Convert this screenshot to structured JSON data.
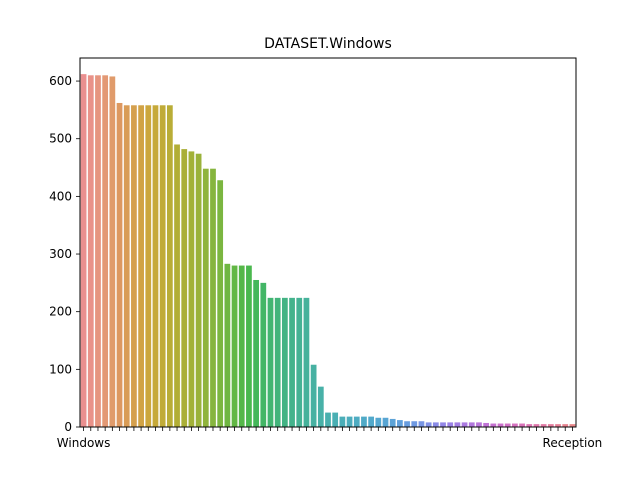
{
  "chart_data": {
    "type": "bar",
    "title": "DATASET.Windows",
    "xlabel": "",
    "ylabel": "",
    "ylim": [
      0,
      640
    ],
    "yticks": [
      0,
      100,
      200,
      300,
      400,
      500,
      600
    ],
    "grid": false,
    "legend": "none",
    "first_category_label": "Windows",
    "last_category_label": "Reception",
    "values": [
      612,
      610,
      610,
      610,
      608,
      562,
      558,
      558,
      558,
      558,
      558,
      558,
      558,
      490,
      482,
      478,
      474,
      448,
      448,
      428,
      283,
      280,
      280,
      280,
      255,
      250,
      224,
      224,
      224,
      224,
      224,
      224,
      108,
      70,
      25,
      25,
      18,
      18,
      18,
      18,
      18,
      16,
      16,
      14,
      12,
      10,
      10,
      10,
      8,
      8,
      8,
      8,
      8,
      8,
      8,
      8,
      7,
      6,
      6,
      6,
      6,
      6,
      5,
      5,
      5,
      5,
      5,
      5,
      5
    ],
    "colors": [
      "#ea8f8f",
      "#e99289",
      "#e6957f",
      "#e39975",
      "#e09b6b",
      "#dd9860",
      "#d99c56",
      "#d5a04e",
      "#d1a345",
      "#cca73d",
      "#c6a93a",
      "#c0ab38",
      "#b9ad37",
      "#b2ae36",
      "#aaaf37",
      "#a2b138",
      "#9ab23a",
      "#90b43c",
      "#86b53e",
      "#7bb640",
      "#6fb642",
      "#62b745",
      "#55b749",
      "#4ab84e",
      "#45b75a",
      "#43b666",
      "#42b571",
      "#42b47b",
      "#43b384",
      "#44b38c",
      "#45b294",
      "#46b29b",
      "#47b1a2",
      "#48b1a8",
      "#49b0ae",
      "#4aafb3",
      "#4baeb8",
      "#4dadbd",
      "#4eacc2",
      "#50aac7",
      "#52a9cb",
      "#55a7cf",
      "#58a5d3",
      "#5ca3d7",
      "#61a0db",
      "#689ddf",
      "#6f99e2",
      "#7895e4",
      "#8190e6",
      "#8a8be7",
      "#9386e7",
      "#9b82e6",
      "#a37ee4",
      "#ab7ae1",
      "#b277de",
      "#b975da",
      "#c073d6",
      "#c672d1",
      "#cc71cc",
      "#d171c6",
      "#d672c0",
      "#da73ba",
      "#de75b4",
      "#e178ad",
      "#e37ba6",
      "#e57e9f",
      "#e78198",
      "#e88591",
      "#e9888b"
    ]
  }
}
